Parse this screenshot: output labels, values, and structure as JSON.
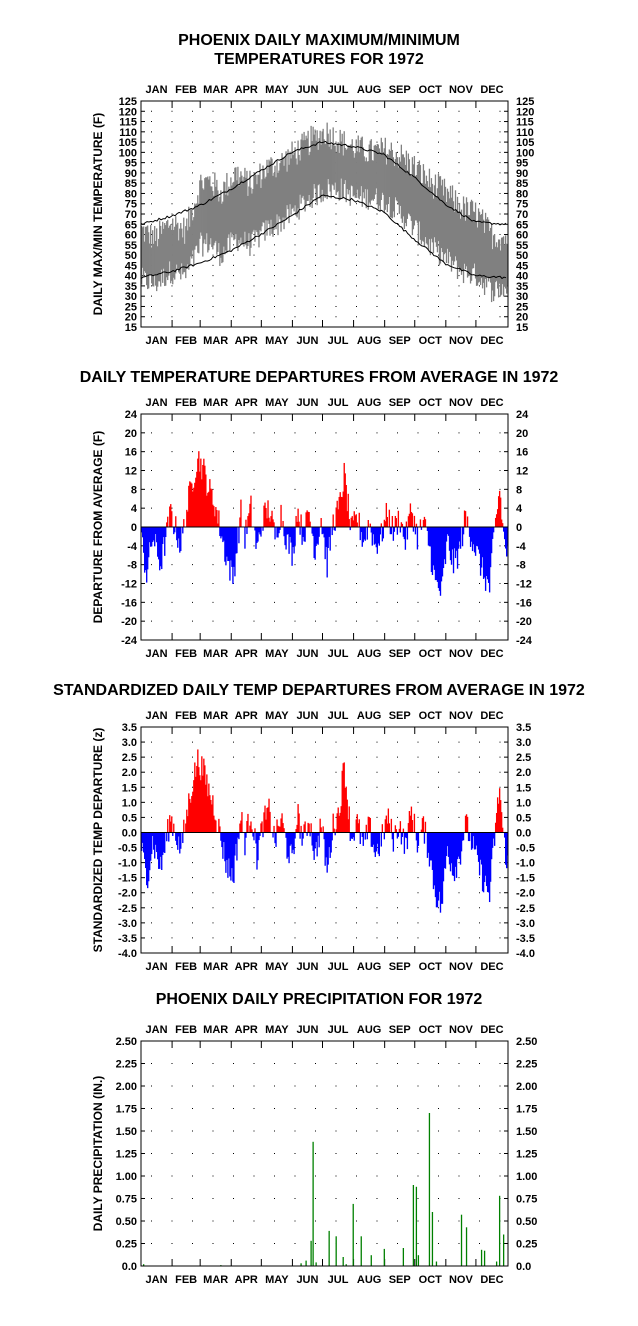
{
  "months": [
    "JAN",
    "FEB",
    "MAR",
    "APR",
    "MAY",
    "JUN",
    "JUL",
    "AUG",
    "SEP",
    "OCT",
    "NOV",
    "DEC"
  ],
  "colors": {
    "range_fill": "#808080",
    "normal_line": "#000000",
    "positive": "#ff0000",
    "negative": "#0000ff",
    "precip": "#008000",
    "grid_dots": "#000000"
  },
  "chart_data": [
    {
      "type": "area",
      "title_lines": [
        "PHOENIX DAILY MAXIMUM/MINIMUM",
        "TEMPERATURES FOR 1972"
      ],
      "ylabel": "DAILY MAX/MIN TEMPERATURE (F)",
      "xlabel": "",
      "ylim": [
        15,
        125
      ],
      "y_ticks": [
        15,
        20,
        25,
        30,
        35,
        40,
        45,
        50,
        55,
        60,
        65,
        70,
        75,
        80,
        85,
        90,
        95,
        100,
        105,
        110,
        115,
        120,
        125
      ],
      "x_ticks": [
        "JAN",
        "FEB",
        "MAR",
        "APR",
        "MAY",
        "JUN",
        "JUL",
        "AUG",
        "SEP",
        "OCT",
        "NOV",
        "DEC"
      ],
      "grid": "dotted",
      "series": [
        {
          "name": "",
          "kind": "daily_max_anchor",
          "x_day": [
            1,
            15,
            30,
            45,
            60,
            70,
            80,
            95,
            110,
            125,
            140,
            155,
            170,
            185,
            200,
            215,
            230,
            245,
            260,
            275,
            290,
            305,
            320,
            335,
            350,
            366
          ],
          "values": [
            62,
            58,
            66,
            62,
            85,
            86,
            80,
            90,
            84,
            92,
            95,
            100,
            106,
            110,
            105,
            102,
            100,
            101,
            98,
            92,
            85,
            80,
            73,
            70,
            60,
            58
          ]
        },
        {
          "name": "",
          "kind": "daily_min_anchor",
          "x_day": [
            1,
            15,
            30,
            45,
            60,
            70,
            80,
            95,
            110,
            125,
            140,
            155,
            170,
            185,
            200,
            215,
            230,
            245,
            260,
            275,
            290,
            305,
            320,
            335,
            350,
            366
          ],
          "values": [
            38,
            36,
            42,
            40,
            55,
            56,
            50,
            58,
            55,
            62,
            66,
            72,
            78,
            82,
            82,
            78,
            78,
            76,
            70,
            62,
            54,
            48,
            42,
            40,
            33,
            34
          ]
        },
        {
          "name": "",
          "kind": "normal_max",
          "x_day": [
            1,
            31,
            59,
            90,
            120,
            151,
            181,
            212,
            243,
            273,
            304,
            334,
            366
          ],
          "values": [
            65,
            69,
            74,
            82,
            91,
            100,
            105,
            103,
            99,
            88,
            75,
            66,
            65
          ]
        },
        {
          "name": "",
          "kind": "normal_min",
          "x_day": [
            1,
            31,
            59,
            90,
            120,
            151,
            181,
            212,
            243,
            273,
            304,
            334,
            366
          ],
          "values": [
            39,
            42,
            46,
            52,
            60,
            69,
            79,
            77,
            71,
            58,
            46,
            40,
            39
          ]
        }
      ]
    },
    {
      "type": "bar",
      "title": "DAILY TEMPERATURE DEPARTURES FROM AVERAGE IN 1972",
      "ylabel": "DEPARTURE FROM AVERAGE (F)",
      "ylim": [
        -24,
        24
      ],
      "y_ticks": [
        24,
        20,
        16,
        12,
        8,
        4,
        0,
        -4,
        -8,
        -12,
        -16,
        -20,
        -24
      ],
      "x_ticks": [
        "JAN",
        "FEB",
        "MAR",
        "APR",
        "MAY",
        "JUN",
        "JUL",
        "AUG",
        "SEP",
        "OCT",
        "NOV",
        "DEC"
      ],
      "grid": "dotted",
      "x_day": [
        1,
        6,
        12,
        20,
        30,
        40,
        48,
        52,
        57,
        63,
        68,
        74,
        80,
        85,
        92,
        100,
        104,
        110,
        116,
        122,
        128,
        134,
        140,
        146,
        152,
        156,
        162,
        168,
        174,
        180,
        186,
        192,
        198,
        203,
        210,
        216,
        222,
        228,
        234,
        240,
        246,
        252,
        258,
        264,
        270,
        276,
        282,
        288,
        294,
        300,
        306,
        312,
        318,
        324,
        330,
        336,
        342,
        348,
        352,
        358,
        362,
        366
      ],
      "values": [
        -3,
        -10,
        -2,
        -8,
        3,
        -4,
        6,
        10,
        15,
        12,
        8,
        5,
        -1,
        -6,
        -11,
        3,
        -2,
        4,
        -5,
        2,
        4,
        -2,
        3,
        -3,
        -6,
        4,
        -2,
        3,
        -5,
        2,
        -8,
        1,
        4,
        11,
        -1,
        2,
        -3,
        1,
        -4,
        -2,
        3,
        -1,
        2,
        -3,
        4,
        -2,
        1,
        -4,
        -12,
        -14,
        -3,
        -8,
        -5,
        2,
        -2,
        -6,
        -10,
        -13,
        -3,
        8,
        -2,
        -6
      ]
    },
    {
      "type": "bar",
      "title": "STANDARDIZED DAILY TEMP DEPARTURES FROM AVERAGE IN 1972",
      "ylabel": "STANDARDIZED TEMP DEPARTURE (z)",
      "ylim": [
        -4.0,
        3.5
      ],
      "y_ticks": [
        "3.5",
        "3.0",
        "2.5",
        "2.0",
        "1.5",
        "1.0",
        "0.5",
        "0.0",
        "-0.5",
        "-1.0",
        "-1.5",
        "-2.0",
        "-2.5",
        "-3.0",
        "-3.5",
        "-4.0"
      ],
      "x_ticks": [
        "JAN",
        "FEB",
        "MAR",
        "APR",
        "MAY",
        "JUN",
        "JUL",
        "AUG",
        "SEP",
        "OCT",
        "NOV",
        "DEC"
      ],
      "grid": "dotted",
      "x_day": [
        1,
        6,
        12,
        20,
        30,
        40,
        48,
        52,
        57,
        63,
        68,
        74,
        80,
        85,
        92,
        100,
        104,
        110,
        116,
        122,
        128,
        134,
        140,
        146,
        152,
        156,
        162,
        168,
        174,
        180,
        186,
        192,
        198,
        203,
        210,
        216,
        222,
        228,
        234,
        240,
        246,
        252,
        258,
        264,
        270,
        276,
        282,
        288,
        294,
        300,
        306,
        312,
        318,
        324,
        330,
        336,
        342,
        348,
        352,
        358,
        362,
        366
      ],
      "values": [
        -0.5,
        -1.6,
        -0.3,
        -1.2,
        0.5,
        -0.6,
        1.0,
        1.7,
        2.4,
        2.0,
        1.4,
        0.8,
        -0.2,
        -1.0,
        -1.5,
        0.5,
        -0.3,
        0.7,
        -0.8,
        0.3,
        0.7,
        -0.3,
        0.5,
        -0.5,
        -1.0,
        0.7,
        -0.3,
        0.5,
        -0.8,
        0.3,
        -1.3,
        0.2,
        0.7,
        2.3,
        -0.2,
        0.3,
        -0.5,
        0.2,
        -0.7,
        -0.3,
        0.5,
        -0.2,
        0.3,
        -0.5,
        0.7,
        -0.3,
        0.2,
        -0.7,
        -2.0,
        -2.5,
        -0.5,
        -1.3,
        -0.8,
        0.3,
        -0.3,
        -1.0,
        -1.6,
        -2.1,
        -0.5,
        1.5,
        -0.3,
        -1.0
      ]
    },
    {
      "type": "bar",
      "title": "PHOENIX DAILY PRECIPITATION FOR 1972",
      "ylabel": "DAILY PRECIPITATION (IN.)",
      "ylim": [
        0,
        2.5
      ],
      "y_ticks": [
        "2.50",
        "2.25",
        "2.00",
        "1.75",
        "1.50",
        "1.25",
        "1.00",
        "0.75",
        "0.50",
        "0.25",
        "0.0"
      ],
      "x_ticks": [
        "JAN",
        "FEB",
        "MAR",
        "APR",
        "MAY",
        "JUN",
        "JUL",
        "AUG",
        "SEP",
        "OCT",
        "NOV",
        "DEC"
      ],
      "grid": "dotted",
      "x_day": [
        3,
        80,
        160,
        165,
        170,
        172,
        175,
        188,
        195,
        202,
        205,
        212,
        220,
        230,
        243,
        262,
        272,
        275,
        277,
        288,
        291,
        295,
        320,
        325,
        340,
        343,
        355,
        358,
        362
      ],
      "values": [
        0.02,
        0.01,
        0.03,
        0.06,
        0.28,
        1.38,
        0.04,
        0.39,
        0.33,
        0.1,
        0.02,
        0.69,
        0.33,
        0.12,
        0.19,
        0.2,
        0.9,
        0.88,
        0.12,
        1.7,
        0.6,
        0.05,
        0.57,
        0.43,
        0.18,
        0.17,
        0.05,
        0.78,
        0.35
      ]
    }
  ]
}
